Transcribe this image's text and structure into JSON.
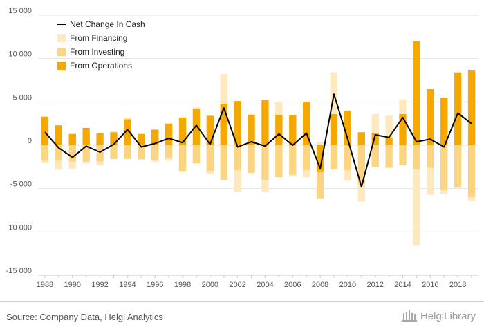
{
  "chart_data": {
    "type": "bar",
    "categories": [
      "1988",
      "1989",
      "1990",
      "1991",
      "1992",
      "1993",
      "1994",
      "1995",
      "1996",
      "1997",
      "1998",
      "1999",
      "2000",
      "2001",
      "2002",
      "2003",
      "2004",
      "2005",
      "2006",
      "2007",
      "2008",
      "2009",
      "2010",
      "2011",
      "2012",
      "2013",
      "2014",
      "2015",
      "2016",
      "2017",
      "2018",
      "2019"
    ],
    "x_tick_labels": [
      "1988",
      "1990",
      "1992",
      "1994",
      "1996",
      "1998",
      "2000",
      "2002",
      "2004",
      "2006",
      "2008",
      "2010",
      "2012",
      "2014",
      "2016",
      "2018"
    ],
    "y_tick_labels": [
      "15 000",
      "10 000",
      "5 000",
      "0",
      "-5 000",
      "-10 000",
      "-15 000"
    ],
    "ylim": [
      -15000,
      15000
    ],
    "stacked": true,
    "grid": true,
    "legend_position": "top-left",
    "series": [
      {
        "name": "From Operations",
        "kind": "bar",
        "color": "#f5a800",
        "values": [
          3300,
          2300,
          1300,
          2000,
          1400,
          1500,
          3000,
          1300,
          1800,
          2500,
          3200,
          4200,
          3400,
          4800,
          5100,
          3500,
          5200,
          3500,
          3500,
          5000,
          -3100,
          3600,
          4000,
          1500,
          1400,
          800,
          3600,
          12000,
          6500,
          5500,
          8400,
          8700
        ]
      },
      {
        "name": "From Investing",
        "kind": "bar",
        "color": "#fcd582",
        "values": [
          -1800,
          -1800,
          -1900,
          -1900,
          -1900,
          -1600,
          -1600,
          -1600,
          -1700,
          -1500,
          -3000,
          -2100,
          -3000,
          -4000,
          -2900,
          -3200,
          -4000,
          -3700,
          -3400,
          -2900,
          -3100,
          -2800,
          -2900,
          -4500,
          -2500,
          -2600,
          -2300,
          -2800,
          -2600,
          -5200,
          -4800,
          -6000
        ]
      },
      {
        "name": "From Financing",
        "kind": "bar",
        "color": "#fee8bd",
        "values": [
          -200,
          -1000,
          -800,
          -200,
          -400,
          100,
          200,
          -100,
          -200,
          -300,
          -100,
          200,
          -300,
          3400,
          -2500,
          100,
          -1400,
          1500,
          -200,
          -800,
          400,
          4800,
          -1200,
          -2000,
          2200,
          2600,
          1700,
          -8800,
          -3100,
          -400,
          -200,
          -400
        ]
      },
      {
        "name": "Net Change In Cash",
        "kind": "line",
        "color": "#000000",
        "values": [
          1500,
          -300,
          -1400,
          -100,
          -800,
          100,
          1800,
          -200,
          200,
          800,
          300,
          2300,
          100,
          4300,
          -200,
          400,
          -100,
          1300,
          0,
          1400,
          -2700,
          5900,
          700,
          -4800,
          1200,
          900,
          3200,
          400,
          700,
          -200,
          3700,
          2500
        ]
      }
    ],
    "legend_order": [
      "Net Change In Cash",
      "From Financing",
      "From Investing",
      "From Operations"
    ]
  },
  "footer": {
    "source": "Source: Company Data, Helgi Analytics",
    "brand": "HelgiLibrary"
  }
}
